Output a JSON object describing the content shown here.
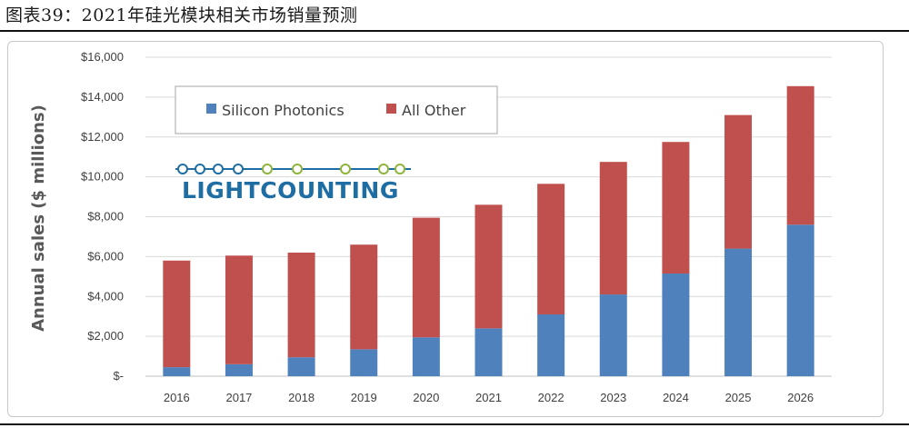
{
  "caption": "图表39：2021年硅光模块相关市场销量预测",
  "logo": {
    "text": "LIGHTCOUNTING",
    "color_primary": "#1f6ea3",
    "color_chain": "#8fb43a"
  },
  "chart_data": {
    "type": "bar",
    "stacked": true,
    "title": "",
    "xlabel": "",
    "ylabel": "Annual sales ($ millions)",
    "ylim": [
      0,
      16000
    ],
    "yticks": [
      0,
      2000,
      4000,
      6000,
      8000,
      10000,
      12000,
      14000,
      16000
    ],
    "ytick_labels": [
      "$-",
      "$2,000",
      "$4,000",
      "$6,000",
      "$8,000",
      "$10,000",
      "$12,000",
      "$14,000",
      "$16,000"
    ],
    "categories": [
      "2016",
      "2017",
      "2018",
      "2019",
      "2020",
      "2021",
      "2022",
      "2023",
      "2024",
      "2025",
      "2026"
    ],
    "series": [
      {
        "name": "Silicon Photonics",
        "color": "#4f81bd",
        "values": [
          450,
          600,
          950,
          1350,
          1950,
          2400,
          3100,
          4100,
          5150,
          6400,
          7600
        ]
      },
      {
        "name": "All Other",
        "color": "#c0504d",
        "values": [
          5350,
          5450,
          5250,
          5250,
          6000,
          6200,
          6550,
          6650,
          6600,
          6700,
          6950
        ]
      }
    ],
    "legend_position": "top-left",
    "grid": true
  }
}
